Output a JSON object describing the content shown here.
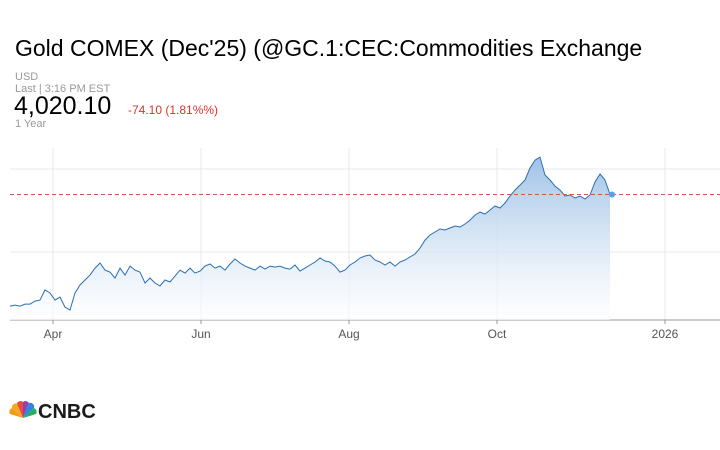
{
  "header": {
    "title": "Gold COMEX (Dec'25) (@GC.1:CEC:Commodities Exchange",
    "currency": "USD",
    "last_time": "Last | 3:16 PM EST",
    "price": "4,020.10",
    "change": "-74.10 (1.81%%)",
    "range": "1 Year"
  },
  "chart_data": {
    "type": "area",
    "series": [
      {
        "name": "Gold COMEX (Dec'25)",
        "color": "#2a6fb3",
        "values": [
          3012,
          3021,
          3012,
          3030,
          3030,
          3057,
          3066,
          3157,
          3130,
          3066,
          3093,
          3003,
          2976,
          3130,
          3202,
          3247,
          3292,
          3355,
          3401,
          3337,
          3319,
          3265,
          3355,
          3292,
          3373,
          3337,
          3319,
          3220,
          3265,
          3220,
          3193,
          3247,
          3229,
          3283,
          3337,
          3310,
          3355,
          3310,
          3328,
          3373,
          3392,
          3355,
          3373,
          3337,
          3392,
          3437,
          3401,
          3373,
          3355,
          3337,
          3373,
          3346,
          3373,
          3364,
          3373,
          3355,
          3346,
          3383,
          3328,
          3355,
          3383,
          3410,
          3446,
          3419,
          3410,
          3373,
          3319,
          3337,
          3383,
          3410,
          3446,
          3464,
          3473,
          3428,
          3410,
          3383,
          3410,
          3373,
          3410,
          3428,
          3455,
          3482,
          3536,
          3608,
          3654,
          3681,
          3708,
          3699,
          3717,
          3735,
          3726,
          3753,
          3789,
          3834,
          3861,
          3843,
          3880,
          3916,
          3898,
          3943,
          4006,
          4060,
          4105,
          4151,
          4259,
          4331,
          4358,
          4196,
          4151,
          4096,
          4060,
          4006,
          4015,
          3988,
          4006,
          3979,
          4015,
          4133,
          4205,
          4151,
          4020.1
        ]
      }
    ],
    "reference_line": 4020.1,
    "reference_color": "#d9534f",
    "xlim": [
      0,
      142
    ],
    "xticks": [
      {
        "value": 8.6,
        "label": "Apr"
      },
      {
        "value": 38.2,
        "label": "Jun"
      },
      {
        "value": 67.8,
        "label": "Aug"
      },
      {
        "value": 97.4,
        "label": "Oct"
      },
      {
        "value": 131,
        "label": "2026"
      }
    ],
    "ylim": [
      2886,
      4440
    ],
    "yticks": [
      3500,
      4250
    ],
    "grid": true
  },
  "footer": {
    "logo": "CNBC"
  }
}
